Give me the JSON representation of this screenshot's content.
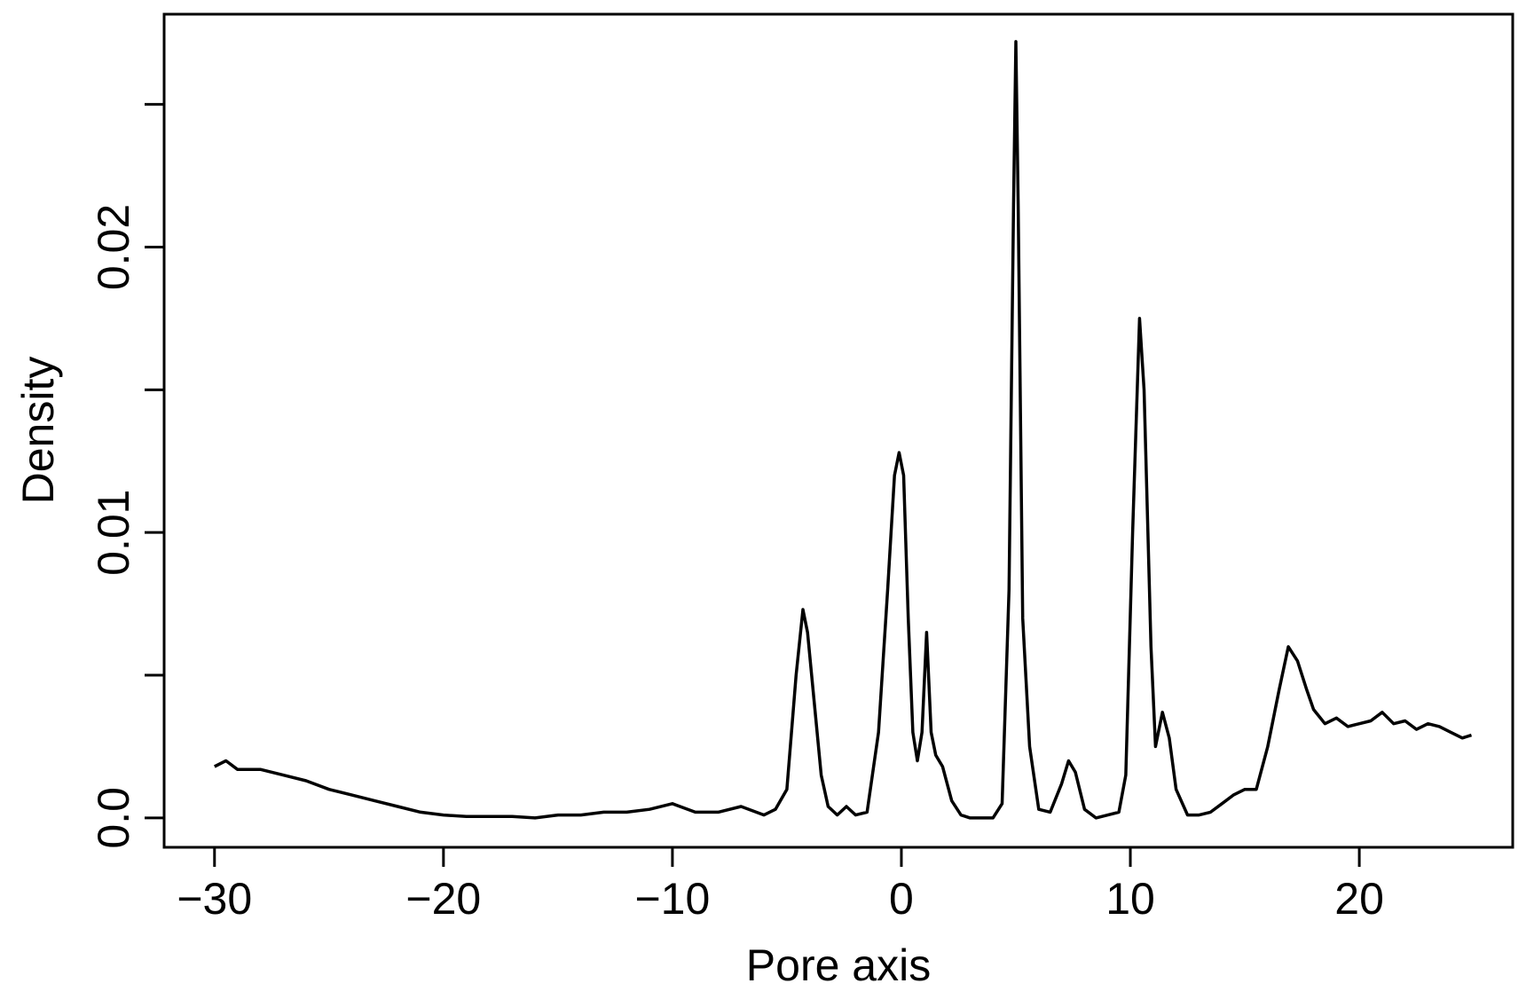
{
  "chart_data": {
    "type": "line",
    "xlabel": "Pore axis",
    "ylabel": "Density",
    "color": "#000000",
    "x": [
      -30,
      -29.5,
      -29,
      -28,
      -27,
      -26,
      -25,
      -24,
      -23,
      -22,
      -21,
      -20,
      -19,
      -18,
      -17,
      -16,
      -15,
      -14,
      -13,
      -12,
      -11,
      -10,
      -9,
      -8,
      -7,
      -6,
      -5.5,
      -5,
      -4.6,
      -4.3,
      -4.1,
      -3.8,
      -3.5,
      -3.2,
      -2.8,
      -2.4,
      -2,
      -1.5,
      -1,
      -0.6,
      -0.3,
      -0.1,
      0.1,
      0.3,
      0.5,
      0.7,
      0.9,
      1.1,
      1.3,
      1.5,
      1.8,
      2.2,
      2.6,
      3,
      4,
      4.4,
      4.7,
      4.9,
      5.0,
      5.1,
      5.3,
      5.6,
      6,
      6.5,
      7,
      7.3,
      7.6,
      8,
      8.5,
      9.5,
      9.8,
      10.1,
      10.4,
      10.6,
      10.9,
      11.1,
      11.4,
      11.7,
      12,
      12.5,
      13,
      13.5,
      14,
      14.5,
      15,
      15.5,
      16,
      16.5,
      16.9,
      17.3,
      17.7,
      18,
      18.5,
      19,
      19.5,
      20,
      20.5,
      21,
      21.5,
      22,
      22.5,
      23,
      23.5,
      24,
      24.5,
      24.9
    ],
    "values": [
      0.0018,
      0.002,
      0.0017,
      0.0017,
      0.0015,
      0.0013,
      0.001,
      0.0008,
      0.0006,
      0.0004,
      0.0002,
      0.0001,
      5e-05,
      5e-05,
      5e-05,
      0.0,
      0.0001,
      0.0001,
      0.0002,
      0.0002,
      0.0003,
      0.0005,
      0.0002,
      0.0002,
      0.0004,
      0.0001,
      0.0003,
      0.001,
      0.005,
      0.0073,
      0.0065,
      0.004,
      0.0015,
      0.0004,
      0.0001,
      0.0004,
      0.0001,
      0.0002,
      0.003,
      0.008,
      0.012,
      0.0128,
      0.012,
      0.007,
      0.003,
      0.002,
      0.003,
      0.0065,
      0.003,
      0.0022,
      0.0018,
      0.0006,
      0.0001,
      0.0,
      0.0,
      0.0005,
      0.008,
      0.0215,
      0.0272,
      0.0215,
      0.007,
      0.0025,
      0.0003,
      0.0002,
      0.0012,
      0.002,
      0.0016,
      0.0003,
      0.0,
      0.0002,
      0.0015,
      0.01,
      0.0175,
      0.015,
      0.006,
      0.0025,
      0.0037,
      0.0028,
      0.001,
      0.0001,
      0.0001,
      0.0002,
      0.0005,
      0.0008,
      0.001,
      0.001,
      0.0025,
      0.0045,
      0.006,
      0.0055,
      0.0045,
      0.0038,
      0.0033,
      0.0035,
      0.0032,
      0.0033,
      0.0034,
      0.0037,
      0.0033,
      0.0034,
      0.0031,
      0.0033,
      0.0032,
      0.003,
      0.0028,
      0.0029
    ],
    "xlim": [
      -32.2,
      26.7
    ],
    "ylim": [
      -0.00103,
      0.02816
    ],
    "xticks": [
      {
        "value": -30,
        "label": "−30"
      },
      {
        "value": -20,
        "label": "−20"
      },
      {
        "value": -10,
        "label": "−10"
      },
      0,
      10,
      20
    ],
    "yticks": [
      {
        "value": 0,
        "label": "0.0"
      },
      0.01,
      0.02
    ],
    "yminor_ticks": [
      0.005,
      0.015,
      0.025
    ]
  }
}
